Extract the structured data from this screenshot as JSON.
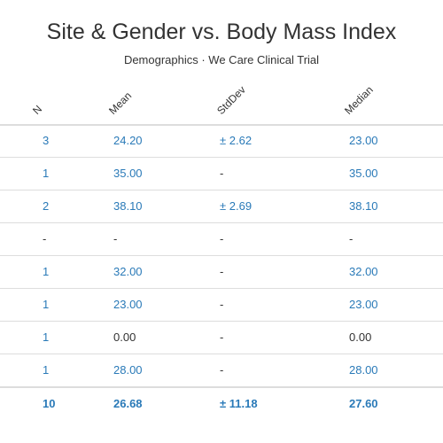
{
  "chart_data": {
    "type": "table",
    "title": "Site & Gender vs. Body Mass Index",
    "subtitle": "Demographics · We Care Clinical Trial",
    "columns": [
      "N",
      "Mean",
      "StdDev",
      "Median"
    ],
    "rows": [
      {
        "n": "3",
        "mean": "24.20",
        "stddev": "± 2.62",
        "median": "23.00",
        "linked": [
          true,
          true,
          true,
          true
        ]
      },
      {
        "n": "1",
        "mean": "35.00",
        "stddev": "-",
        "median": "35.00",
        "linked": [
          true,
          true,
          false,
          true
        ]
      },
      {
        "n": "2",
        "mean": "38.10",
        "stddev": "± 2.69",
        "median": "38.10",
        "linked": [
          true,
          true,
          true,
          true
        ]
      },
      {
        "n": "-",
        "mean": "-",
        "stddev": "-",
        "median": "-",
        "linked": [
          false,
          false,
          false,
          false
        ]
      },
      {
        "n": "1",
        "mean": "32.00",
        "stddev": "-",
        "median": "32.00",
        "linked": [
          true,
          true,
          false,
          true
        ]
      },
      {
        "n": "1",
        "mean": "23.00",
        "stddev": "-",
        "median": "23.00",
        "linked": [
          true,
          true,
          false,
          true
        ]
      },
      {
        "n": "1",
        "mean": "0.00",
        "stddev": "-",
        "median": "0.00",
        "linked": [
          true,
          false,
          false,
          false
        ]
      },
      {
        "n": "1",
        "mean": "28.00",
        "stddev": "-",
        "median": "28.00",
        "linked": [
          true,
          true,
          false,
          true
        ]
      }
    ],
    "total": {
      "n": "10",
      "mean": "26.68",
      "stddev": "± 11.18",
      "median": "27.60",
      "linked": [
        true,
        true,
        true,
        true
      ]
    },
    "colors": {
      "link": "#2a7ab8",
      "text": "#333333",
      "rule": "#dddddd"
    }
  }
}
